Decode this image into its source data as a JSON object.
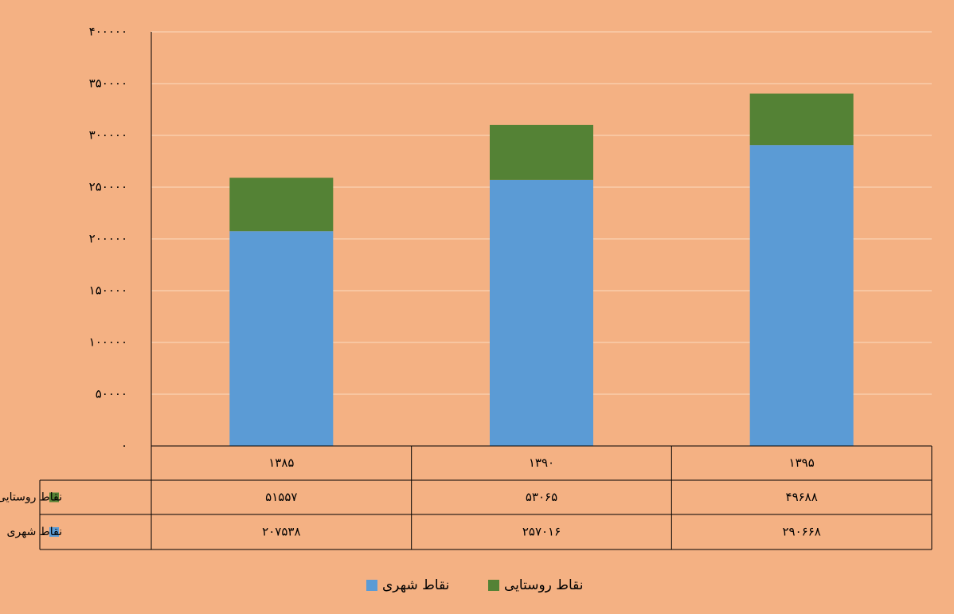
{
  "chart_data": {
    "type": "stacked_bar",
    "categories": [
      "۱۳۸۵",
      "۱۳۹۰",
      "۱۳۹۵"
    ],
    "series": [
      {
        "name": "نقاط شهری",
        "color": "#5b9bd5",
        "values": [
          207538,
          257016,
          290668
        ],
        "value_labels": [
          "۲۰۷۵۳۸",
          "۲۵۷۰۱۶",
          "۲۹۰۶۶۸"
        ]
      },
      {
        "name": "نقاط روستایی",
        "color": "#548235",
        "values": [
          51557,
          53065,
          49688
        ],
        "value_labels": [
          "۵۱۵۵۷",
          "۵۳۰۶۵",
          "۴۹۶۸۸"
        ]
      }
    ],
    "ylim": [
      0,
      400000
    ],
    "yticks": [
      {
        "value": 0,
        "label": "۰"
      },
      {
        "value": 50000,
        "label": "۵۰۰۰۰"
      },
      {
        "value": 100000,
        "label": "۱۰۰۰۰۰"
      },
      {
        "value": 150000,
        "label": "۱۵۰۰۰۰"
      },
      {
        "value": 200000,
        "label": "۲۰۰۰۰۰"
      },
      {
        "value": 250000,
        "label": "۲۵۰۰۰۰"
      },
      {
        "value": 300000,
        "label": "۳۰۰۰۰۰"
      },
      {
        "value": 350000,
        "label": "۳۵۰۰۰۰"
      },
      {
        "value": 400000,
        "label": "۴۰۰۰۰۰"
      }
    ],
    "grid": true,
    "legend": "bottom",
    "data_table": true
  }
}
